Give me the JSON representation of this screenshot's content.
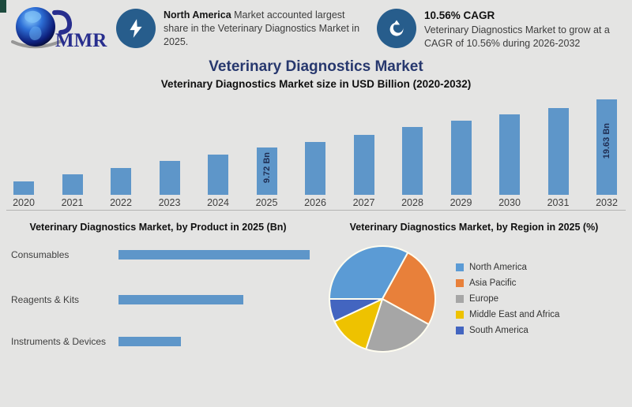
{
  "page": {
    "background": "#e4e4e3",
    "corner_mark_color": "#1d4a3e",
    "separator_color": "#b3b3b3",
    "title_color": "#27386e"
  },
  "header": {
    "logo_text": "MMR",
    "highlight1": {
      "icon": "lightning-icon",
      "icon_bg": "#275d8c",
      "bold": "North America",
      "text": " Market accounted largest share in the Veterinary Diagnostics Market in 2025."
    },
    "highlight2": {
      "icon": "growth-cycle-icon",
      "icon_bg": "#275d8c",
      "title": "10.56% CAGR",
      "text": "Veterinary Diagnostics Market to grow at a CAGR of 10.56% during 2026-2032"
    }
  },
  "title": "Veterinary Diagnostics Market",
  "subtitle": "Veterinary Diagnostics Market size in USD Billion (2020-2032)",
  "chart_data": [
    {
      "type": "bar",
      "title": "Veterinary Diagnostics Market size in USD Billion (2020-2032)",
      "categories": [
        "2020",
        "2021",
        "2022",
        "2023",
        "2024",
        "2025",
        "2026",
        "2027",
        "2028",
        "2029",
        "2030",
        "2031",
        "2032"
      ],
      "values": [
        2.7,
        4.2,
        5.5,
        6.9,
        8.3,
        9.72,
        10.9,
        12.4,
        13.9,
        15.2,
        16.5,
        17.9,
        19.63
      ],
      "unit": "Bn",
      "ylim": [
        0,
        19.63
      ],
      "bar_color": "#5e96c9",
      "grid": false,
      "value_labels": [
        {
          "index": 5,
          "text": "9.72 Bn",
          "offset": 6
        },
        {
          "index": 12,
          "text": "19.63 Bn",
          "offset": 30
        }
      ]
    },
    {
      "type": "bar",
      "orientation": "horizontal",
      "title": "Veterinary Diagnostics Market, by Product in 2025 (Bn)",
      "categories": [
        "Consumables",
        "Reagents & Kits",
        "Instruments & Devices"
      ],
      "values": [
        4.9,
        3.2,
        1.6
      ],
      "xlim": [
        0,
        4.9
      ],
      "bar_color": "#5e96c9",
      "grid": false
    },
    {
      "type": "pie",
      "title": "Veterinary Diagnostics Market, by Region in 2025 (%)",
      "labels": [
        "North America",
        "Asia Pacific",
        "Europe",
        "Middle East and Africa",
        "South America"
      ],
      "values": [
        33,
        25,
        22,
        13,
        7
      ],
      "colors": [
        "#5b9bd5",
        "#e8803a",
        "#a6a6a6",
        "#eec200",
        "#4365c0"
      ],
      "start_angle_deg": 270,
      "direction": "clockwise",
      "legend_position": "right",
      "slice_border_color": "#fffdf0"
    }
  ]
}
